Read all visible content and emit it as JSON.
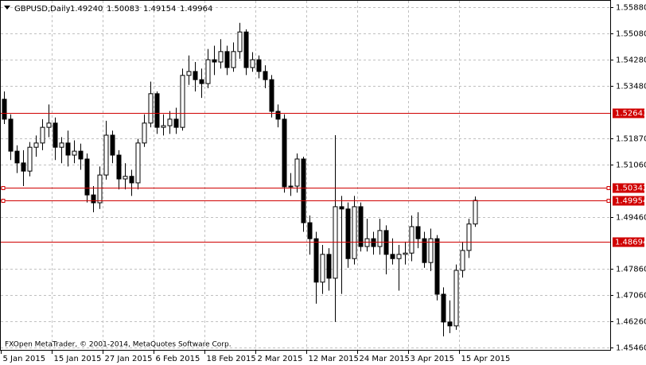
{
  "chart_data": {
    "type": "candlestick",
    "symbol": "GBPUSD,Daily",
    "last_quote_labels": [
      "1.49240",
      "1.50083",
      "1.49154",
      "1.49964"
    ],
    "footer": "FXOpen MetaTrader, © 2001-2014, MetaQuotes Software Corp.",
    "categories": [
      "5 Jan 2015",
      null,
      null,
      null,
      null,
      null,
      null,
      null,
      "15 Jan 2015",
      null,
      null,
      null,
      null,
      null,
      null,
      null,
      "27 Jan 2015",
      null,
      null,
      null,
      null,
      null,
      null,
      null,
      "6 Feb 2015",
      null,
      null,
      null,
      null,
      null,
      null,
      null,
      "18 Feb 2015",
      null,
      null,
      null,
      null,
      null,
      null,
      null,
      "2 Mar 2015",
      null,
      null,
      null,
      null,
      null,
      null,
      null,
      "12 Mar 2015",
      null,
      null,
      null,
      null,
      null,
      null,
      null,
      "24 Mar 2015",
      null,
      null,
      null,
      null,
      null,
      null,
      null,
      "3 Apr 2015",
      null,
      null,
      null,
      null,
      null,
      null,
      null,
      "15 Apr 2015",
      null,
      null
    ],
    "open": [
      1.5306,
      1.5245,
      1.5147,
      1.5111,
      1.5086,
      1.5159,
      1.5172,
      1.522,
      1.5233,
      1.5159,
      1.5172,
      1.5135,
      1.5147,
      1.5123,
      1.5013,
      1.4989,
      1.5074,
      1.5196,
      1.5135,
      1.5062,
      1.507,
      1.505,
      1.5172,
      1.5233,
      1.5323,
      1.522,
      1.5225,
      1.5245,
      1.522,
      1.5379,
      1.5391,
      1.5366,
      1.5354,
      1.5427,
      1.542,
      1.5452,
      1.5403,
      1.5452,
      1.5512,
      1.5403,
      1.5427,
      1.5391,
      1.5366,
      1.5269,
      1.5245,
      1.5038,
      1.504,
      1.5123,
      1.4928,
      1.4879,
      1.4746,
      1.4831,
      1.4758,
      1.4977,
      1.497,
      1.4818,
      1.4977,
      1.4855,
      1.4879,
      1.4855,
      1.4904,
      1.4831,
      1.4818,
      1.4831,
      1.4835,
      1.4916,
      1.4879,
      1.4806,
      1.4879,
      1.4709,
      1.4624,
      1.4612,
      1.4782,
      1.4843,
      1.4924
    ],
    "high": [
      1.533,
      1.526,
      1.5165,
      1.515,
      1.5175,
      1.5195,
      1.5245,
      1.529,
      1.525,
      1.519,
      1.521,
      1.518,
      1.517,
      1.514,
      1.504,
      1.51,
      1.524,
      1.521,
      1.515,
      1.511,
      1.509,
      1.5185,
      1.526,
      1.536,
      1.533,
      1.526,
      1.527,
      1.528,
      1.54,
      1.544,
      1.542,
      1.54,
      1.546,
      1.547,
      1.549,
      1.547,
      1.548,
      1.554,
      1.552,
      1.545,
      1.544,
      1.541,
      1.538,
      1.529,
      1.526,
      1.508,
      1.514,
      1.513,
      1.495,
      1.49,
      1.486,
      1.485,
      1.5196,
      1.501,
      1.499,
      1.501,
      1.499,
      1.494,
      1.49,
      1.494,
      1.492,
      1.488,
      1.486,
      1.487,
      1.495,
      1.496,
      1.49,
      1.491,
      1.489,
      1.473,
      1.469,
      1.48,
      1.487,
      1.494,
      1.50083
    ],
    "low": [
      1.523,
      1.512,
      1.508,
      1.504,
      1.507,
      1.513,
      1.515,
      1.519,
      1.512,
      1.511,
      1.51,
      1.511,
      1.509,
      1.499,
      1.496,
      1.497,
      1.506,
      1.511,
      1.503,
      1.503,
      1.501,
      1.503,
      1.516,
      1.522,
      1.52,
      1.5195,
      1.52,
      1.52,
      1.521,
      1.535,
      1.533,
      1.531,
      1.534,
      1.538,
      1.54,
      1.538,
      1.539,
      1.543,
      1.538,
      1.539,
      1.537,
      1.534,
      1.525,
      1.522,
      1.502,
      1.501,
      1.502,
      1.49,
      1.483,
      1.468,
      1.471,
      1.472,
      1.4624,
      1.471,
      1.479,
      1.48,
      1.484,
      1.484,
      1.483,
      1.483,
      1.477,
      1.48,
      1.472,
      1.48,
      1.481,
      1.485,
      1.479,
      1.478,
      1.469,
      1.458,
      1.459,
      1.46,
      1.476,
      1.482,
      1.49154
    ],
    "close": [
      1.5245,
      1.5147,
      1.5111,
      1.5086,
      1.5159,
      1.5172,
      1.522,
      1.5233,
      1.5159,
      1.5172,
      1.5135,
      1.5147,
      1.5123,
      1.5013,
      1.4989,
      1.5074,
      1.5196,
      1.5135,
      1.5062,
      1.507,
      1.505,
      1.5172,
      1.5233,
      1.5323,
      1.522,
      1.5225,
      1.5245,
      1.522,
      1.5379,
      1.5391,
      1.5366,
      1.5354,
      1.5427,
      1.542,
      1.5452,
      1.5403,
      1.5452,
      1.5512,
      1.5403,
      1.5427,
      1.5391,
      1.5366,
      1.5269,
      1.5245,
      1.5038,
      1.504,
      1.5123,
      1.4928,
      1.4879,
      1.4746,
      1.4831,
      1.4758,
      1.4977,
      1.497,
      1.4818,
      1.4977,
      1.4855,
      1.4879,
      1.4855,
      1.4904,
      1.4831,
      1.4818,
      1.4831,
      1.4835,
      1.4916,
      1.4879,
      1.4806,
      1.4879,
      1.4709,
      1.4624,
      1.4612,
      1.4782,
      1.4843,
      1.4924,
      1.49964
    ],
    "ylim": [
      1.45361,
      1.56099
    ],
    "yticks": [
      {
        "value": 1.5588,
        "label": "1.55880"
      },
      {
        "value": 1.5508,
        "label": "1.55080"
      },
      {
        "value": 1.5428,
        "label": "1.54280"
      },
      {
        "value": 1.5348,
        "label": "1.53480"
      },
      {
        "value": 1.5187,
        "label": "1.51870"
      },
      {
        "value": 1.5106,
        "label": "1.51060"
      },
      {
        "value": 1.4946,
        "label": "1.49460"
      },
      {
        "value": 1.4786,
        "label": "1.47860"
      },
      {
        "value": 1.4706,
        "label": "1.47060"
      },
      {
        "value": 1.4626,
        "label": "1.46260"
      },
      {
        "value": 1.4546,
        "label": "1.45460"
      }
    ],
    "hlines": [
      {
        "value": 1.52643,
        "label": "1.52643"
      },
      {
        "value": 1.50342,
        "label": "1.50342"
      },
      {
        "value": 1.49954,
        "label": "1.49954"
      },
      {
        "value": 1.48694,
        "label": "1.48694"
      }
    ],
    "hline_color": "#d00000",
    "grid": true
  }
}
